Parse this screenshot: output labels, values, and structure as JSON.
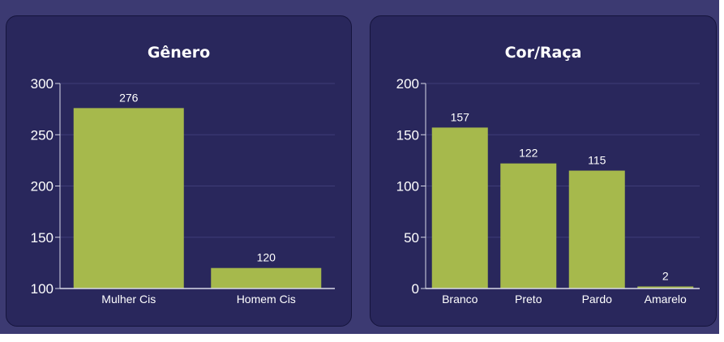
{
  "charts": [
    {
      "title": "Gênero",
      "accent": "#a6b94c",
      "chart_data": {
        "type": "bar",
        "title": "Gênero",
        "categories": [
          "Mulher Cis",
          "Homem Cis"
        ],
        "values": [
          276,
          120
        ],
        "ylim": [
          100,
          300
        ],
        "yticks": [
          100,
          150,
          200,
          250,
          300
        ],
        "grid": true,
        "legend": "none"
      }
    },
    {
      "title": "Cor/Raça",
      "accent": "#a6b94c",
      "chart_data": {
        "type": "bar",
        "title": "Cor/Raça",
        "categories": [
          "Branco",
          "Preto",
          "Pardo",
          "Amarelo"
        ],
        "values": [
          157,
          122,
          115,
          2
        ],
        "ylim": [
          0,
          200
        ],
        "yticks": [
          0,
          50,
          100,
          150,
          200
        ],
        "grid": true,
        "legend": "none"
      }
    }
  ]
}
